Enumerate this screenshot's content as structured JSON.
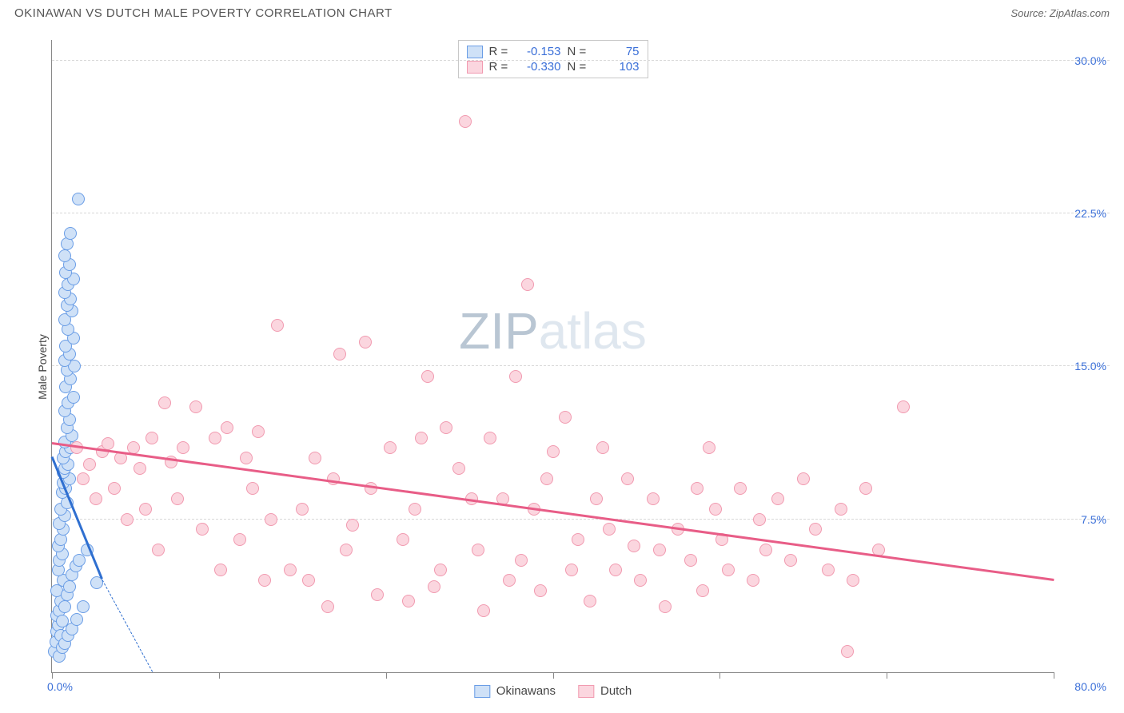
{
  "header": {
    "title": "OKINAWAN VS DUTCH MALE POVERTY CORRELATION CHART",
    "source_prefix": "Source: ",
    "source_name": "ZipAtlas.com"
  },
  "chart": {
    "type": "scatter",
    "y_axis_title": "Male Poverty",
    "xlim": [
      0.0,
      80.0
    ],
    "ylim": [
      0.0,
      31.0
    ],
    "x_ticks": [
      0.0,
      13.33,
      26.67,
      40.0,
      53.33,
      66.67,
      80.0
    ],
    "x_lim_labels": {
      "min": "0.0%",
      "max": "80.0%"
    },
    "y_grid": [
      {
        "v": 7.5,
        "label": "7.5%"
      },
      {
        "v": 15.0,
        "label": "15.0%"
      },
      {
        "v": 22.5,
        "label": "22.5%"
      },
      {
        "v": 30.0,
        "label": "30.0%"
      }
    ],
    "background_color": "#ffffff",
    "grid_color": "#d8d8d8",
    "axis_color": "#888888",
    "tick_label_color": "#3a6fd8",
    "marker_radius": 8,
    "marker_border_width": 1,
    "watermark": {
      "text_strong": "ZIP",
      "text_light": "atlas",
      "color_strong": "#b9c6d3",
      "color_light": "#dfe7ef",
      "fontsize": 64
    },
    "series": [
      {
        "key": "okinawans",
        "label": "Okinawans",
        "fill": "#cfe1f7",
        "stroke": "#6a9de6",
        "R": "-0.153",
        "N": "75",
        "trend": {
          "x1": 0.0,
          "y1": 10.5,
          "x2": 4.0,
          "y2": 4.5,
          "ext_x2": 8.0,
          "ext_y2": -1.5,
          "color": "#2f6fd0",
          "width": 3
        },
        "points": [
          [
            0.2,
            1.0
          ],
          [
            0.3,
            1.5
          ],
          [
            0.4,
            2.0
          ],
          [
            0.5,
            2.3
          ],
          [
            0.4,
            2.8
          ],
          [
            0.6,
            3.0
          ],
          [
            0.7,
            3.5
          ],
          [
            0.4,
            4.0
          ],
          [
            0.9,
            4.5
          ],
          [
            0.5,
            5.0
          ],
          [
            0.6,
            5.5
          ],
          [
            0.8,
            5.8
          ],
          [
            0.5,
            6.2
          ],
          [
            0.7,
            6.5
          ],
          [
            0.9,
            7.0
          ],
          [
            0.6,
            7.3
          ],
          [
            1.0,
            7.7
          ],
          [
            0.7,
            8.0
          ],
          [
            1.2,
            8.3
          ],
          [
            0.8,
            8.8
          ],
          [
            1.1,
            9.0
          ],
          [
            0.9,
            9.3
          ],
          [
            1.4,
            9.5
          ],
          [
            0.9,
            9.8
          ],
          [
            1.0,
            10.0
          ],
          [
            1.3,
            10.2
          ],
          [
            0.9,
            10.5
          ],
          [
            1.1,
            10.8
          ],
          [
            1.5,
            11.0
          ],
          [
            1.0,
            11.3
          ],
          [
            1.6,
            11.6
          ],
          [
            1.2,
            12.0
          ],
          [
            1.4,
            12.4
          ],
          [
            1.0,
            12.8
          ],
          [
            1.3,
            13.2
          ],
          [
            1.7,
            13.5
          ],
          [
            1.1,
            14.0
          ],
          [
            1.5,
            14.4
          ],
          [
            1.2,
            14.8
          ],
          [
            1.8,
            15.0
          ],
          [
            1.0,
            15.3
          ],
          [
            1.4,
            15.6
          ],
          [
            1.1,
            16.0
          ],
          [
            1.7,
            16.4
          ],
          [
            1.3,
            16.8
          ],
          [
            1.0,
            17.3
          ],
          [
            1.6,
            17.7
          ],
          [
            1.2,
            18.0
          ],
          [
            1.5,
            18.3
          ],
          [
            1.0,
            18.6
          ],
          [
            1.3,
            19.0
          ],
          [
            1.7,
            19.3
          ],
          [
            1.1,
            19.6
          ],
          [
            1.4,
            20.0
          ],
          [
            1.0,
            20.4
          ],
          [
            1.2,
            21.0
          ],
          [
            1.5,
            21.5
          ],
          [
            2.1,
            23.2
          ],
          [
            0.7,
            1.8
          ],
          [
            0.8,
            2.5
          ],
          [
            1.0,
            3.2
          ],
          [
            1.2,
            3.8
          ],
          [
            1.4,
            4.2
          ],
          [
            1.6,
            4.8
          ],
          [
            1.9,
            5.2
          ],
          [
            2.2,
            5.5
          ],
          [
            0.6,
            0.8
          ],
          [
            0.8,
            1.2
          ],
          [
            1.0,
            1.4
          ],
          [
            1.3,
            1.8
          ],
          [
            1.6,
            2.1
          ],
          [
            2.0,
            2.6
          ],
          [
            3.6,
            4.4
          ],
          [
            2.5,
            3.2
          ],
          [
            2.8,
            6.0
          ]
        ]
      },
      {
        "key": "dutch",
        "label": "Dutch",
        "fill": "#fbd6df",
        "stroke": "#f19ab0",
        "R": "-0.330",
        "N": "103",
        "trend": {
          "x1": 0.0,
          "y1": 11.2,
          "x2": 80.0,
          "y2": 4.5,
          "color": "#e85d87",
          "width": 2.5
        },
        "points": [
          [
            2.0,
            11.0
          ],
          [
            3.0,
            10.2
          ],
          [
            4.0,
            10.8
          ],
          [
            4.5,
            11.2
          ],
          [
            5.5,
            10.5
          ],
          [
            6.5,
            11.0
          ],
          [
            7.0,
            10.0
          ],
          [
            8.0,
            11.5
          ],
          [
            9.0,
            13.2
          ],
          [
            9.5,
            10.3
          ],
          [
            10.5,
            11.0
          ],
          [
            11.5,
            13.0
          ],
          [
            12.0,
            7.0
          ],
          [
            13.0,
            11.5
          ],
          [
            14.0,
            12.0
          ],
          [
            15.0,
            6.5
          ],
          [
            15.5,
            10.5
          ],
          [
            16.5,
            11.8
          ],
          [
            17.5,
            7.5
          ],
          [
            18.0,
            17.0
          ],
          [
            20.0,
            8.0
          ],
          [
            21.0,
            10.5
          ],
          [
            22.0,
            3.2
          ],
          [
            23.0,
            15.6
          ],
          [
            24.0,
            7.2
          ],
          [
            25.0,
            16.2
          ],
          [
            25.5,
            9.0
          ],
          [
            26.0,
            3.8
          ],
          [
            27.0,
            11.0
          ],
          [
            28.0,
            6.5
          ],
          [
            28.5,
            3.5
          ],
          [
            29.0,
            8.0
          ],
          [
            30.0,
            14.5
          ],
          [
            30.5,
            4.2
          ],
          [
            31.5,
            12.0
          ],
          [
            32.5,
            10.0
          ],
          [
            33.0,
            27.0
          ],
          [
            34.0,
            6.0
          ],
          [
            34.5,
            3.0
          ],
          [
            35.0,
            11.5
          ],
          [
            36.0,
            8.5
          ],
          [
            37.0,
            14.5
          ],
          [
            37.5,
            5.5
          ],
          [
            38.0,
            19.0
          ],
          [
            38.5,
            8.0
          ],
          [
            39.0,
            4.0
          ],
          [
            40.0,
            10.8
          ],
          [
            41.0,
            12.5
          ],
          [
            42.0,
            6.5
          ],
          [
            43.0,
            3.5
          ],
          [
            44.0,
            11.0
          ],
          [
            44.5,
            7.0
          ],
          [
            45.0,
            5.0
          ],
          [
            46.0,
            9.5
          ],
          [
            46.5,
            6.2
          ],
          [
            47.0,
            4.5
          ],
          [
            48.0,
            8.5
          ],
          [
            48.5,
            6.0
          ],
          [
            49.0,
            3.2
          ],
          [
            50.0,
            7.0
          ],
          [
            51.0,
            5.5
          ],
          [
            52.0,
            4.0
          ],
          [
            53.0,
            8.0
          ],
          [
            53.5,
            6.5
          ],
          [
            54.0,
            5.0
          ],
          [
            55.0,
            9.0
          ],
          [
            56.0,
            4.5
          ],
          [
            57.0,
            6.0
          ],
          [
            58.0,
            8.5
          ],
          [
            59.0,
            5.5
          ],
          [
            60.0,
            9.5
          ],
          [
            61.0,
            7.0
          ],
          [
            62.0,
            5.0
          ],
          [
            63.0,
            8.0
          ],
          [
            64.0,
            4.5
          ],
          [
            65.0,
            9.0
          ],
          [
            66.0,
            6.0
          ],
          [
            68.0,
            13.0
          ],
          [
            7.5,
            8.0
          ],
          [
            6.0,
            7.5
          ],
          [
            5.0,
            9.0
          ],
          [
            19.0,
            5.0
          ],
          [
            20.5,
            4.5
          ],
          [
            22.5,
            9.5
          ],
          [
            23.5,
            6.0
          ],
          [
            29.5,
            11.5
          ],
          [
            31.0,
            5.0
          ],
          [
            33.5,
            8.5
          ],
          [
            36.5,
            4.5
          ],
          [
            39.5,
            9.5
          ],
          [
            41.5,
            5.0
          ],
          [
            43.5,
            8.5
          ],
          [
            52.5,
            11.0
          ],
          [
            56.5,
            7.5
          ],
          [
            16.0,
            9.0
          ],
          [
            17.0,
            4.5
          ],
          [
            13.5,
            5.0
          ],
          [
            10.0,
            8.5
          ],
          [
            8.5,
            6.0
          ],
          [
            3.5,
            8.5
          ],
          [
            2.5,
            9.5
          ],
          [
            63.5,
            1.0
          ],
          [
            51.5,
            9.0
          ]
        ]
      }
    ]
  }
}
